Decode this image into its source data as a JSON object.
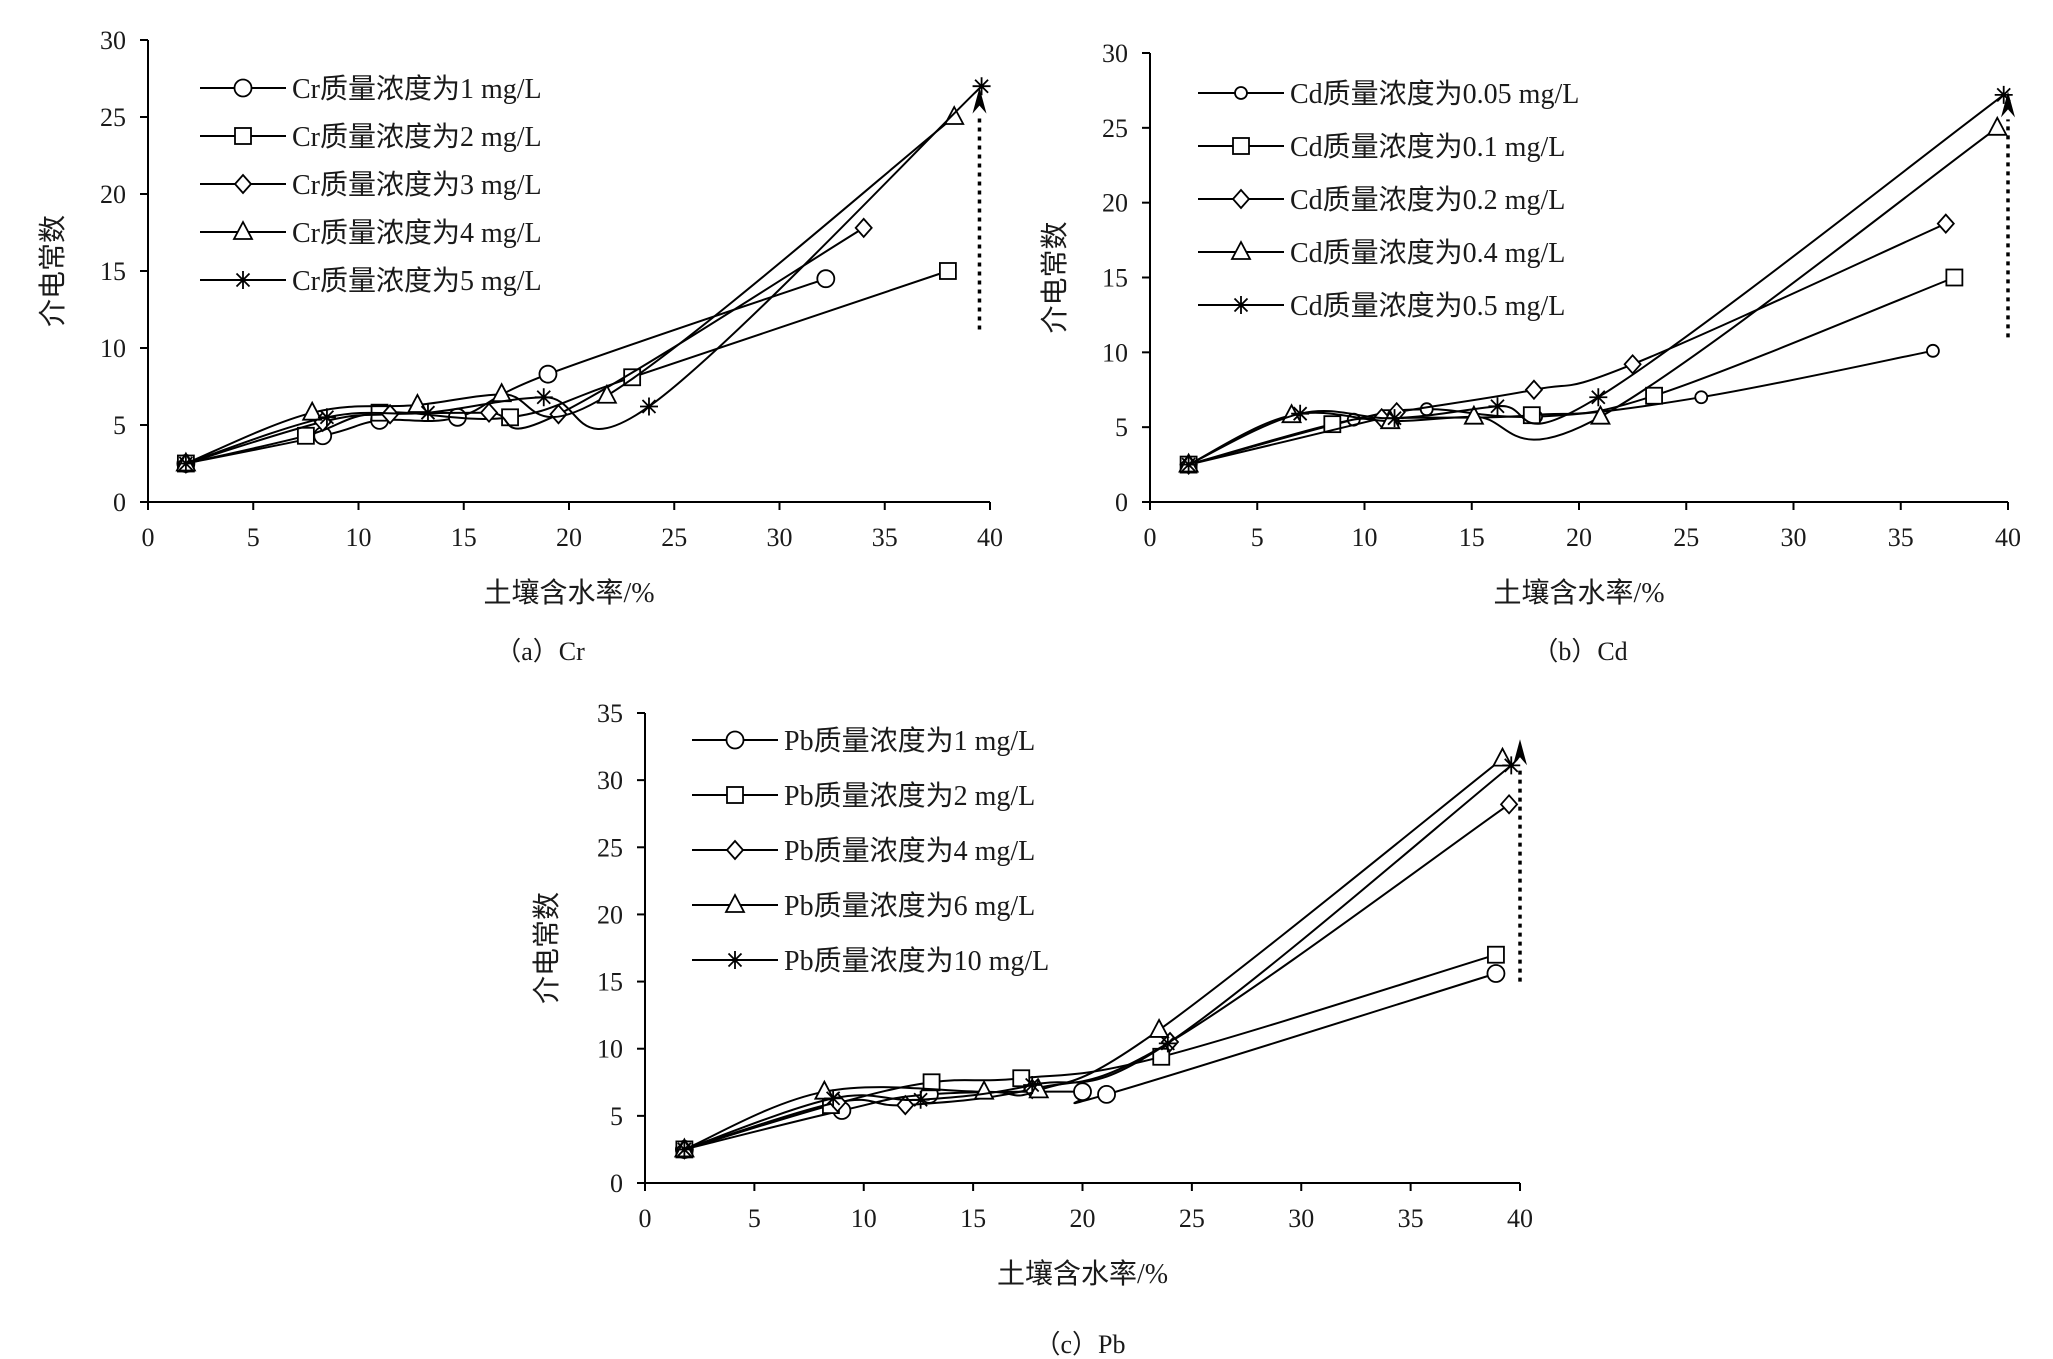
{
  "chart_data": [
    {
      "type": "line",
      "caption": "（a）Cr",
      "xlabel": "土壤含水率/%",
      "ylabel": "介电常数",
      "xlim": [
        0,
        40
      ],
      "ylim": [
        0,
        30
      ],
      "xticks": [
        0,
        5,
        10,
        15,
        20,
        25,
        30,
        35,
        40
      ],
      "yticks": [
        0,
        5,
        10,
        15,
        20,
        25,
        30
      ],
      "legend_position": "top-left",
      "arrow": {
        "x": 39.5,
        "y_from": 11.2,
        "y_to": 26.0
      },
      "series": [
        {
          "name": "Cr质量浓度为1 mg/L",
          "marker": "circle",
          "x": [
            1.8,
            8.3,
            11.0,
            14.7,
            19.0,
            32.2
          ],
          "y": [
            2.5,
            4.3,
            5.3,
            5.5,
            8.3,
            14.5
          ]
        },
        {
          "name": "Cr质量浓度为2 mg/L",
          "marker": "square",
          "x": [
            1.8,
            7.5,
            11.0,
            17.2,
            23.0,
            38.0
          ],
          "y": [
            2.5,
            4.3,
            5.8,
            5.5,
            8.1,
            15.0
          ]
        },
        {
          "name": "Cr质量浓度为3 mg/L",
          "marker": "diamond",
          "x": [
            1.8,
            8.3,
            11.5,
            16.2,
            19.5,
            34.0
          ],
          "y": [
            2.5,
            5.2,
            5.7,
            5.8,
            5.7,
            17.8
          ]
        },
        {
          "name": "Cr质量浓度为4 mg/L",
          "marker": "triangle",
          "x": [
            1.8,
            7.8,
            12.8,
            16.8,
            21.8,
            38.3
          ],
          "y": [
            2.5,
            5.8,
            6.3,
            7.0,
            6.9,
            25.0
          ]
        },
        {
          "name": "Cr质量浓度为5 mg/L",
          "marker": "star",
          "x": [
            1.8,
            8.5,
            13.3,
            18.8,
            23.8,
            39.6
          ],
          "y": [
            2.5,
            5.5,
            5.8,
            6.8,
            6.2,
            27.0
          ]
        }
      ]
    },
    {
      "type": "line",
      "caption": "（b）Cd",
      "xlabel": "土壤含水率/%",
      "ylabel": "介电常数",
      "xlim": [
        0,
        40
      ],
      "ylim": [
        0,
        30
      ],
      "xticks": [
        0,
        5,
        10,
        15,
        20,
        25,
        30,
        35,
        40
      ],
      "yticks": [
        0,
        5,
        10,
        15,
        20,
        25,
        30
      ],
      "legend_position": "top-left",
      "arrow": {
        "x": 40.0,
        "y_from": 11.0,
        "y_to": 26.5
      },
      "series": [
        {
          "name": "Cd质量浓度为0.05 mg/L",
          "marker": "circle-small",
          "x": [
            1.8,
            9.5,
            12.9,
            18.0,
            25.7,
            36.5
          ],
          "y": [
            2.5,
            5.5,
            6.2,
            5.7,
            7.0,
            10.1
          ]
        },
        {
          "name": "Cd质量浓度为0.1 mg/L",
          "marker": "square",
          "x": [
            1.8,
            8.5,
            11.2,
            17.8,
            23.5,
            37.5
          ],
          "y": [
            2.5,
            5.2,
            5.6,
            5.8,
            7.1,
            15.0
          ]
        },
        {
          "name": "Cd质量浓度为0.2 mg/L",
          "marker": "diamond",
          "x": [
            1.8,
            10.8,
            11.5,
            17.9,
            22.5,
            37.1
          ],
          "y": [
            2.5,
            5.6,
            6.0,
            7.5,
            9.2,
            18.6
          ]
        },
        {
          "name": "Cd质量浓度为0.4 mg/L",
          "marker": "triangle",
          "x": [
            1.8,
            6.6,
            11.2,
            15.1,
            21.0,
            39.5
          ],
          "y": [
            2.5,
            5.8,
            5.4,
            5.7,
            5.7,
            25.0
          ]
        },
        {
          "name": "Cd质量浓度为0.5 mg/L",
          "marker": "star",
          "x": [
            1.8,
            7.0,
            11.4,
            16.2,
            20.9,
            39.8
          ],
          "y": [
            2.5,
            5.9,
            5.6,
            6.4,
            7.0,
            27.2
          ]
        }
      ]
    },
    {
      "type": "line",
      "caption": "（c）Pb",
      "xlabel": "土壤含水率/%",
      "ylabel": "介电常数",
      "xlim": [
        0,
        40
      ],
      "ylim": [
        0,
        35
      ],
      "xticks": [
        0,
        5,
        10,
        15,
        20,
        25,
        30,
        35,
        40
      ],
      "yticks": [
        0,
        5,
        10,
        15,
        20,
        25,
        30,
        35
      ],
      "legend_position": "top-left",
      "arrow": {
        "x": 40.0,
        "y_from": 15.0,
        "y_to": 32.0
      },
      "series": [
        {
          "name": "Pb质量浓度为1 mg/L",
          "marker": "circle",
          "x": [
            1.8,
            9.0,
            13.0,
            20.0,
            21.1,
            38.9
          ],
          "y": [
            2.5,
            5.4,
            6.6,
            6.8,
            6.6,
            15.6
          ]
        },
        {
          "name": "Pb质量浓度为2 mg/L",
          "marker": "square",
          "x": [
            1.8,
            8.5,
            13.1,
            17.2,
            23.6,
            38.9
          ],
          "y": [
            2.5,
            5.8,
            7.5,
            7.8,
            9.4,
            17.0
          ]
        },
        {
          "name": "Pb质量浓度为4 mg/L",
          "marker": "diamond",
          "x": [
            1.8,
            8.8,
            11.9,
            17.7,
            24.0,
            39.5
          ],
          "y": [
            2.5,
            6.0,
            5.8,
            7.0,
            10.5,
            28.2
          ]
        },
        {
          "name": "Pb质量浓度为6 mg/L",
          "marker": "triangle",
          "x": [
            1.8,
            8.2,
            15.5,
            18.0,
            23.5,
            39.2
          ],
          "y": [
            2.5,
            6.8,
            6.8,
            6.9,
            11.4,
            31.6
          ]
        },
        {
          "name": "Pb质量浓度为10 mg/L",
          "marker": "star",
          "x": [
            1.8,
            8.6,
            12.6,
            17.7,
            23.9,
            39.6
          ],
          "y": [
            2.5,
            6.3,
            6.2,
            7.3,
            10.4,
            31.1
          ]
        }
      ]
    }
  ]
}
